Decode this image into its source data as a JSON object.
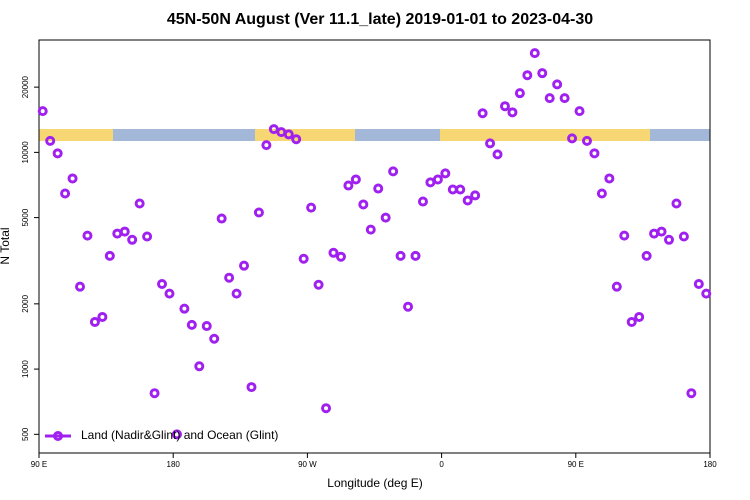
{
  "chart_data": {
    "type": "scatter",
    "title": "45N-50N August (Ver 11.1_late)   2019-01-01 to 2023-04-30",
    "x_label": "Longitude (deg E)",
    "y_label": "N Total",
    "log_y": true,
    "legend_position": "bottom-left",
    "xlim": [
      90,
      540
    ],
    "ylim": [
      410,
      33000
    ],
    "xticks": [
      {
        "value": 90,
        "label": "90 E"
      },
      {
        "value": 180,
        "label": "180"
      },
      {
        "value": 270,
        "label": "90 W"
      },
      {
        "value": 360,
        "label": "0"
      },
      {
        "value": 450,
        "label": "90 E"
      },
      {
        "value": 540,
        "label": "180"
      }
    ],
    "yticks": [
      500,
      1000,
      2000,
      5000,
      10000,
      20000
    ],
    "series": [
      {
        "name": "Land (Nadir&Glint) and Ocean (Glint)",
        "color": "#a020f0",
        "x": [
          92.5,
          97.5,
          102.5,
          107.5,
          112.5,
          117.5,
          122.5,
          127.5,
          132.5,
          137.5,
          142.5,
          147.5,
          152.5,
          157.5,
          162.5,
          167.5,
          172.5,
          177.5,
          182.5,
          187.5,
          192.5,
          197.5,
          202.5,
          207.5,
          212.5,
          217.5,
          222.5,
          227.5,
          232.5,
          237.5,
          242.5,
          247.5,
          252.5,
          257.5,
          262.5,
          267.5,
          272.5,
          277.5,
          282.5,
          287.5,
          292.5,
          297.5,
          302.5,
          307.5,
          312.5,
          317.5,
          322.5,
          327.5,
          332.5,
          337.5,
          342.5,
          347.5,
          352.5,
          357.5,
          362.5,
          367.5,
          372.5,
          377.5,
          382.5,
          387.5,
          392.5,
          397.5,
          402.5,
          407.5,
          412.5,
          417.5,
          422.5,
          427.5,
          432.5,
          437.5,
          442.5,
          447.5,
          452.5,
          457.5,
          462.5,
          467.5,
          472.5,
          477.5,
          482.5,
          487.5,
          492.5,
          497.5,
          502.5,
          507.5,
          512.5,
          517.5,
          522.5,
          527.5,
          532.5,
          537.5
        ],
        "values": [
          15500,
          11300,
          9900,
          6460,
          7580,
          2400,
          4130,
          1650,
          1740,
          3330,
          4220,
          4310,
          3950,
          5810,
          4090,
          774,
          2470,
          2230,
          500,
          1900,
          1600,
          1030,
          1580,
          1380,
          4950,
          2640,
          2230,
          3000,
          826,
          5280,
          10800,
          12800,
          12400,
          12100,
          11500,
          3230,
          5560,
          2450,
          660,
          3440,
          3300,
          7030,
          7500,
          5750,
          4400,
          6810,
          5000,
          8170,
          3330,
          1940,
          3330,
          5930,
          7270,
          7500,
          8000,
          6740,
          6740,
          6000,
          6330,
          15150,
          11000,
          9790,
          16330,
          15300,
          18760,
          22700,
          28700,
          23200,
          17800,
          20600,
          17800,
          11600,
          15500,
          11300,
          9900,
          6460,
          7580,
          2400,
          4130,
          1650,
          1740,
          3330,
          4220,
          4310,
          3950,
          5810,
          4090,
          774,
          2470,
          2230
        ]
      }
    ]
  }
}
